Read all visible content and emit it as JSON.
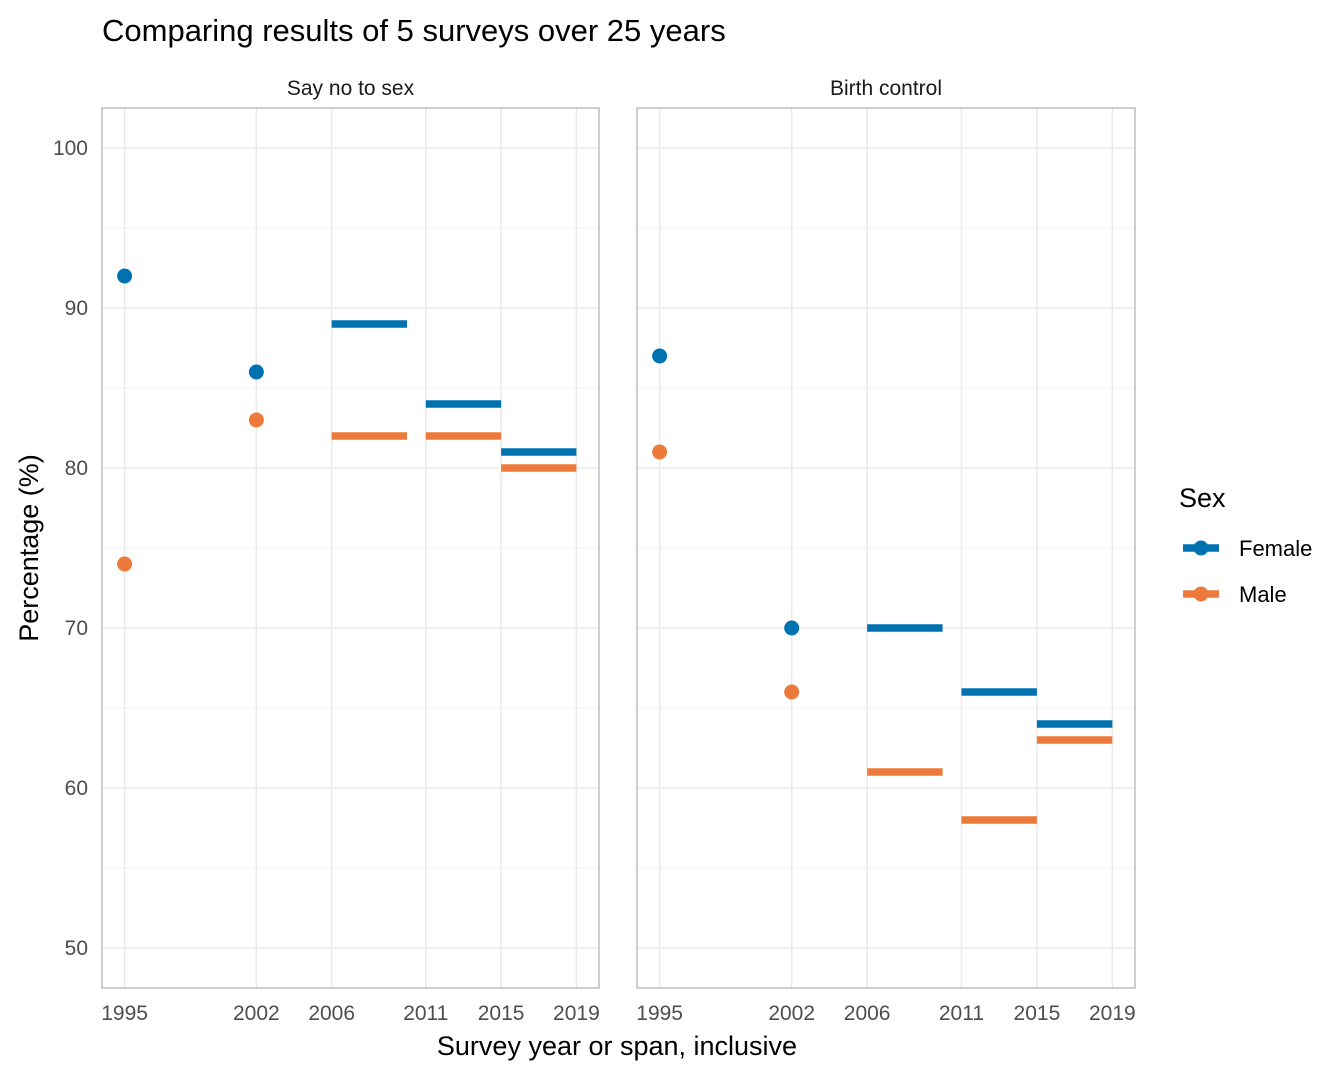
{
  "chart_data": {
    "type": "scatter",
    "title": "Comparing results of 5 surveys over 25 years",
    "xlabel": "Survey year or span, inclusive",
    "ylabel": "Percentage (%)",
    "ylim": [
      47.5,
      102.5
    ],
    "xlim": [
      1993.8,
      2020.2
    ],
    "x_ticks": [
      1995,
      2002,
      2006,
      2011,
      2015,
      2019
    ],
    "y_ticks": [
      50,
      60,
      70,
      80,
      90,
      100
    ],
    "grid": true,
    "legend": {
      "title": "Sex",
      "position": "right",
      "entries": [
        {
          "key": "Female",
          "label": "Female",
          "color": "#0072B2"
        },
        {
          "key": "Male",
          "label": "Male",
          "color": "#ED7A3A"
        }
      ]
    },
    "facets": [
      {
        "label": "Say no to sex",
        "series": [
          {
            "key": "Female",
            "points": [
              {
                "x": 1995,
                "y": 92
              },
              {
                "x": 2002,
                "y": 86
              }
            ],
            "spans": [
              {
                "x": [
                  2006,
                  2010
                ],
                "y": 89
              },
              {
                "x": [
                  2011,
                  2015
                ],
                "y": 84
              },
              {
                "x": [
                  2015,
                  2019
                ],
                "y": 81
              }
            ]
          },
          {
            "key": "Male",
            "points": [
              {
                "x": 1995,
                "y": 74
              },
              {
                "x": 2002,
                "y": 83
              }
            ],
            "spans": [
              {
                "x": [
                  2006,
                  2010
                ],
                "y": 82
              },
              {
                "x": [
                  2011,
                  2015
                ],
                "y": 82
              },
              {
                "x": [
                  2015,
                  2019
                ],
                "y": 80
              }
            ]
          }
        ]
      },
      {
        "label": "Birth control",
        "series": [
          {
            "key": "Female",
            "points": [
              {
                "x": 1995,
                "y": 87
              },
              {
                "x": 2002,
                "y": 70
              }
            ],
            "spans": [
              {
                "x": [
                  2006,
                  2010
                ],
                "y": 70
              },
              {
                "x": [
                  2011,
                  2015
                ],
                "y": 66
              },
              {
                "x": [
                  2015,
                  2019
                ],
                "y": 64
              }
            ]
          },
          {
            "key": "Male",
            "points": [
              {
                "x": 1995,
                "y": 81
              },
              {
                "x": 2002,
                "y": 66
              }
            ],
            "spans": [
              {
                "x": [
                  2006,
                  2010
                ],
                "y": 61
              },
              {
                "x": [
                  2011,
                  2015
                ],
                "y": 58
              },
              {
                "x": [
                  2015,
                  2019
                ],
                "y": 63
              }
            ]
          }
        ]
      }
    ]
  }
}
